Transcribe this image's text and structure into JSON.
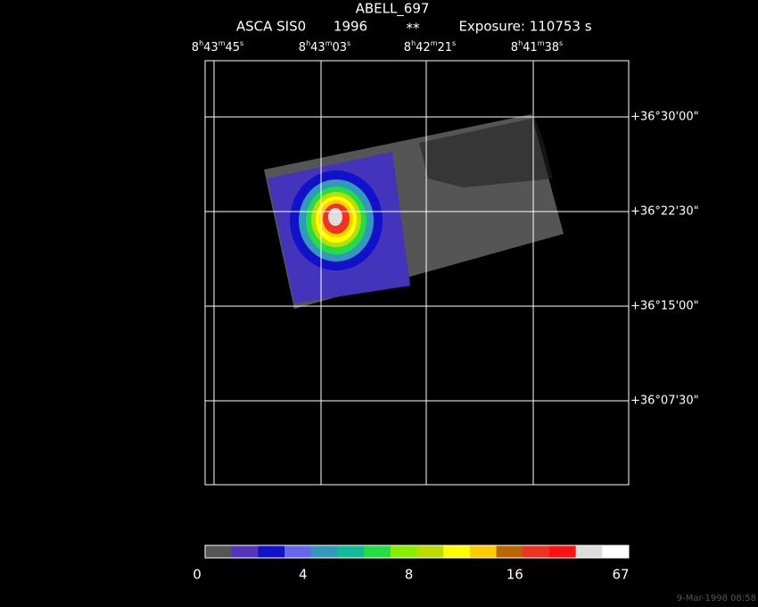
{
  "title": "ABELL_697",
  "subtitle": {
    "instrument": "ASCA SIS0",
    "year": "1996",
    "flag": "**",
    "exposure": "Exposure: 110753 s"
  },
  "ra_labels": [
    [
      "8",
      "h",
      "43",
      "m",
      "45",
      "s"
    ],
    [
      "8",
      "h",
      "43",
      "m",
      "03",
      "s"
    ],
    [
      "8",
      "h",
      "42",
      "m",
      "21",
      "s"
    ],
    [
      "8",
      "h",
      "41",
      "m",
      "38",
      "s"
    ]
  ],
  "dec_labels": [
    "+36°30'00\"",
    "+36°22'30\"",
    "+36°15'00\"",
    "+36°07'30\""
  ],
  "colorbar": {
    "colors": [
      "#555555",
      "#5533bb",
      "#1111cc",
      "#6666ee",
      "#3399bb",
      "#11bb99",
      "#22dd44",
      "#88ee00",
      "#bbdd00",
      "#ffff00",
      "#ffcc00",
      "#bb6600",
      "#ee3322",
      "#ff1111",
      "#dddddd",
      "#ffffff"
    ],
    "labels": [
      "0",
      "4",
      "8",
      "16",
      "67"
    ]
  },
  "date": "9-Mar-1998 08:58"
}
